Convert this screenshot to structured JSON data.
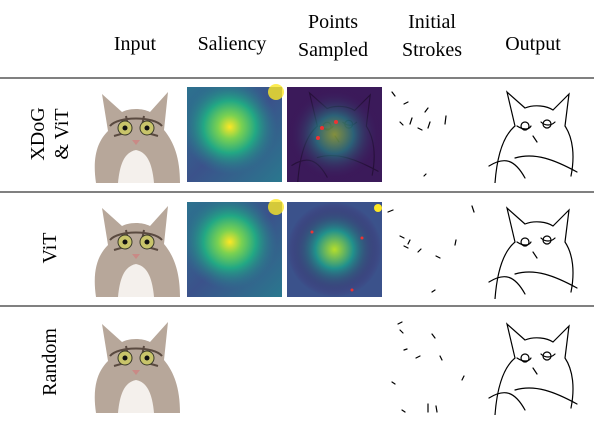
{
  "table": {
    "columns": [
      [
        "Input"
      ],
      [
        "Saliency"
      ],
      [
        "Points",
        "Sampled"
      ],
      [
        "Initial",
        "Strokes"
      ],
      [
        "Output"
      ]
    ],
    "rows": [
      {
        "label": [
          "XDoG",
          "& ViT"
        ]
      },
      {
        "label": [
          "ViT"
        ]
      },
      {
        "label": [
          "Random"
        ]
      }
    ]
  }
}
